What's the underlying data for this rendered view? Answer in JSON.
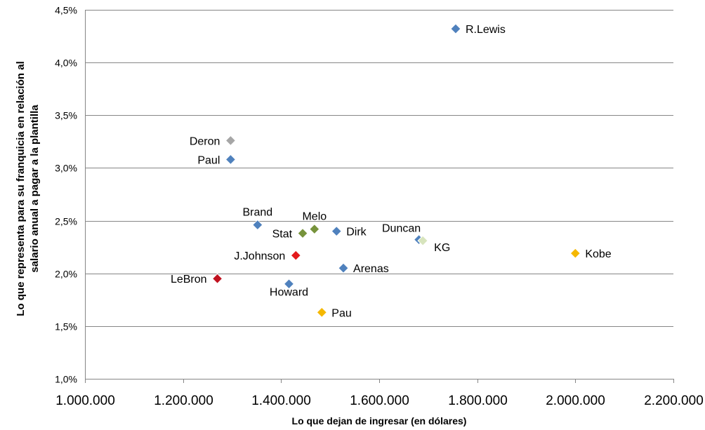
{
  "chart_data": {
    "type": "scatter",
    "title": "",
    "xlabel": "Lo que dejan de ingresar (en dólares)",
    "ylabel_lines": [
      "Lo que representa para  su franquicia en relación al",
      "salario  anual a pagar a la plantilla"
    ],
    "xlim": [
      1000000,
      2200000
    ],
    "ylim": [
      1.0,
      4.5
    ],
    "x_ticks": [
      1000000,
      1200000,
      1400000,
      1600000,
      1800000,
      2000000,
      2200000
    ],
    "x_tick_labels": [
      "1.000.000",
      "1.200.000",
      "1.400.000",
      "1.600.000",
      "1.800.000",
      "2.000.000",
      "2.200.000"
    ],
    "y_ticks": [
      1.0,
      1.5,
      2.0,
      2.5,
      3.0,
      3.5,
      4.0,
      4.5
    ],
    "y_tick_labels": [
      "1,0%",
      "1,5%",
      "2,0%",
      "2,5%",
      "3,0%",
      "3,5%",
      "4,0%",
      "4,5%"
    ],
    "grid": "horizontal",
    "legend": "none",
    "points": [
      {
        "label": "R.Lewis",
        "x": 1756000,
        "y": 4.32,
        "color": "#4f81bd",
        "label_pos": "right"
      },
      {
        "label": "Deron",
        "x": 1297000,
        "y": 3.26,
        "color": "#a6a6a6",
        "label_pos": "left"
      },
      {
        "label": "Paul",
        "x": 1297000,
        "y": 3.08,
        "color": "#4f81bd",
        "label_pos": "left"
      },
      {
        "label": "Brand",
        "x": 1352000,
        "y": 2.46,
        "color": "#4f81bd",
        "label_pos": "above"
      },
      {
        "label": "Melo",
        "x": 1468000,
        "y": 2.42,
        "color": "#77933c",
        "label_pos": "above"
      },
      {
        "label": "Stat",
        "x": 1444000,
        "y": 2.38,
        "color": "#77933c",
        "label_pos": "left"
      },
      {
        "label": "Dirk",
        "x": 1513000,
        "y": 2.4,
        "color": "#4f81bd",
        "label_pos": "right"
      },
      {
        "label": "Duncan",
        "x": 1681000,
        "y": 2.32,
        "color": "#4f81bd",
        "label_pos": "above-left"
      },
      {
        "label": "KG",
        "x": 1689000,
        "y": 2.31,
        "color": "#d7e4bd",
        "label_pos": "right-below"
      },
      {
        "label": "J.Johnson",
        "x": 1430000,
        "y": 2.17,
        "color": "#e31a1c",
        "label_pos": "left"
      },
      {
        "label": "Kobe",
        "x": 2000000,
        "y": 2.19,
        "color": "#f5b800",
        "label_pos": "right"
      },
      {
        "label": "Arenas",
        "x": 1527000,
        "y": 2.05,
        "color": "#4f81bd",
        "label_pos": "right"
      },
      {
        "label": "LeBron",
        "x": 1270000,
        "y": 1.95,
        "color": "#c0111f",
        "label_pos": "left"
      },
      {
        "label": "Howard",
        "x": 1416000,
        "y": 1.9,
        "color": "#4f81bd",
        "label_pos": "below"
      },
      {
        "label": "Pau",
        "x": 1483000,
        "y": 1.63,
        "color": "#f5b800",
        "label_pos": "right"
      }
    ]
  }
}
